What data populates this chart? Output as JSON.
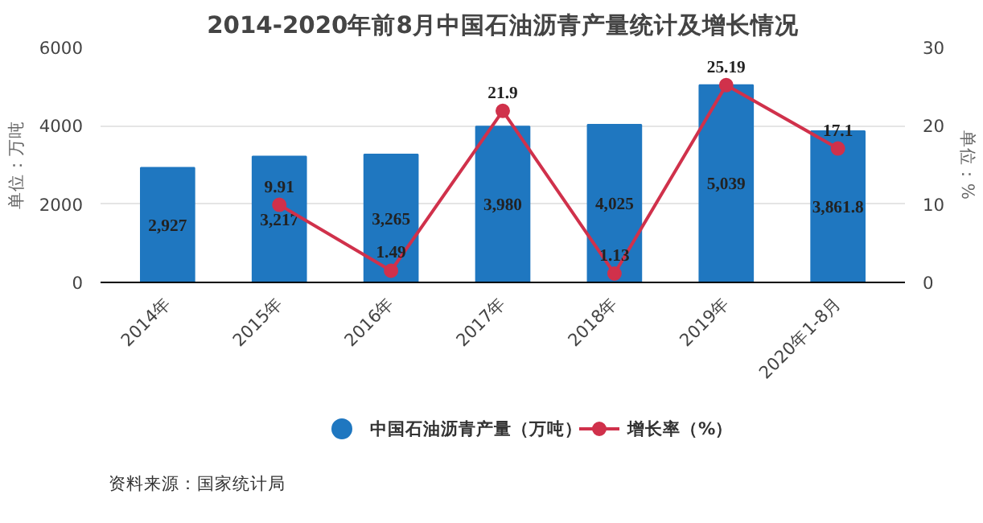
{
  "chart_data": {
    "type": "bar",
    "title": "2014-2020年前8月中国石油沥青产量统计及增长情况",
    "categories": [
      "2014年",
      "2015年",
      "2016年",
      "2017年",
      "2018年",
      "2019年",
      "2020年1-8月"
    ],
    "ylabel": "单位：万吨",
    "y2label": "单位：%",
    "ylim": [
      0,
      6000
    ],
    "yticks": [
      0,
      2000,
      4000,
      6000
    ],
    "y2lim": [
      0,
      30
    ],
    "y2ticks": [
      0,
      10,
      20,
      30
    ],
    "series": [
      {
        "name": "中国石油沥青产量（万吨）",
        "color": "#1f77c0",
        "values": [
          2927,
          3217,
          3265,
          3980,
          4025,
          5039,
          3861.8
        ],
        "value_labels": [
          "2,927",
          "3,217",
          "3,265",
          "3,980",
          "4,025",
          "5,039",
          "3,861.8"
        ]
      },
      {
        "name": "增长率（%）",
        "type": "line",
        "axis": "y2",
        "color": "#d0314b",
        "marker": "circle",
        "values": [
          null,
          9.91,
          1.49,
          21.9,
          1.13,
          25.19,
          17.1
        ],
        "value_labels": [
          null,
          "9.91",
          "1.49",
          "21.9",
          "1.13",
          "25.19",
          "17.1"
        ]
      }
    ],
    "grid": "y",
    "legend": "bottom",
    "annotations": [
      "资料来源：国家统计局"
    ]
  }
}
